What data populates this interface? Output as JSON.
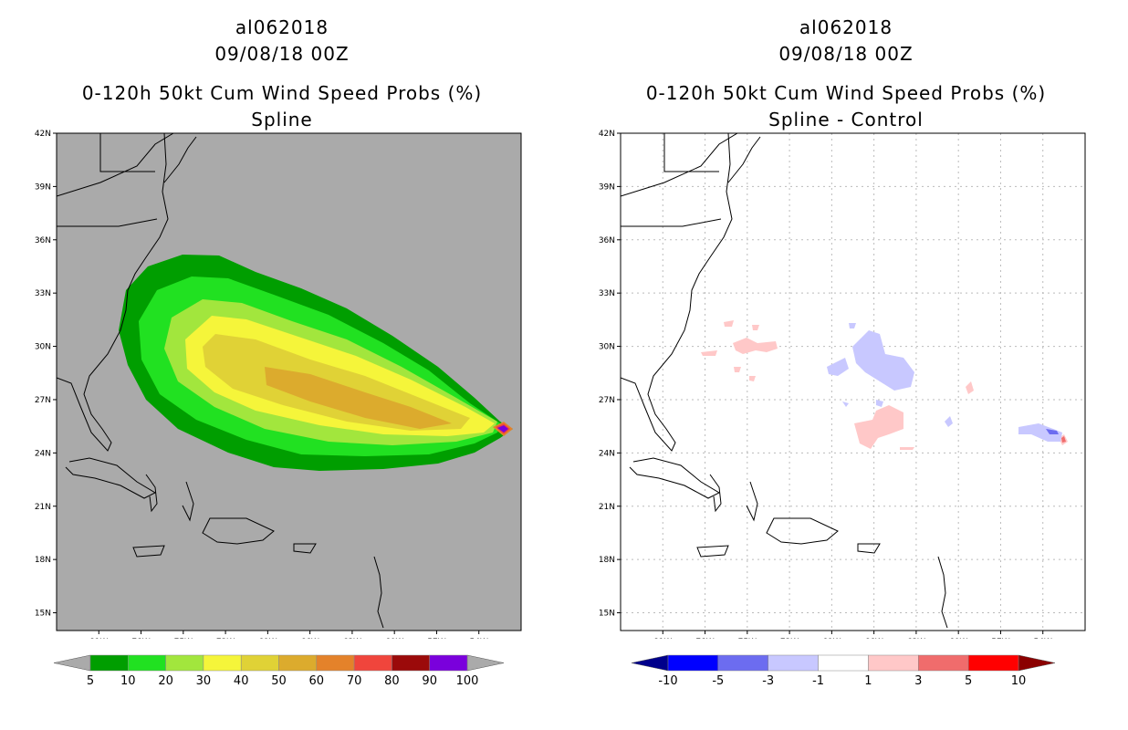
{
  "chart_data": [
    {
      "type": "contour_map",
      "storm_id": "al062018",
      "datetime": "09/08/18 00Z",
      "title": "0-120h 50kt Cum Wind Speed Probs (%)",
      "subtitle": "Spline",
      "units": "%",
      "lat_ticks": [
        "42N",
        "39N",
        "36N",
        "33N",
        "30N",
        "27N",
        "24N",
        "21N",
        "18N",
        "15N"
      ],
      "lon_ticks": [
        "81W",
        "78W",
        "75W",
        "72W",
        "69W",
        "66W",
        "63W",
        "60W",
        "57W",
        "54W"
      ],
      "lat_range": [
        14,
        42
      ],
      "lon_range": [
        -84,
        -51
      ],
      "colorbar_labels": [
        "5",
        "10",
        "20",
        "30",
        "40",
        "50",
        "60",
        "70",
        "80",
        "90",
        "100"
      ],
      "colorbar_colors": [
        "#009e00",
        "#21e121",
        "#a2e63d",
        "#f5f53a",
        "#e0d236",
        "#dcab2d",
        "#e4822a",
        "#f0453c",
        "#9b0a0a",
        "#7a00dc"
      ],
      "background_color": "#aaaaaa"
    },
    {
      "type": "contour_map",
      "storm_id": "al062018",
      "datetime": "09/08/18 00Z",
      "title": "0-120h 50kt Cum Wind Speed Probs (%)",
      "subtitle": "Spline - Control",
      "units": "%",
      "lat_ticks": [
        "42N",
        "39N",
        "36N",
        "33N",
        "30N",
        "27N",
        "24N",
        "21N",
        "18N",
        "15N"
      ],
      "lon_ticks": [
        "81W",
        "78W",
        "75W",
        "72W",
        "69W",
        "66W",
        "63W",
        "60W",
        "57W",
        "54W"
      ],
      "lat_range": [
        14,
        42
      ],
      "lon_range": [
        -84,
        -51
      ],
      "colorbar_labels": [
        "-10",
        "-5",
        "-3",
        "-1",
        "1",
        "3",
        "5",
        "10"
      ],
      "colorbar_colors": [
        "#0000ff",
        "#6c6cf0",
        "#c8c8ff",
        "#ffffff",
        "#ffc8c8",
        "#f06c6c",
        "#ff0000"
      ],
      "colorbar_end_colors": [
        "#00008b",
        "#8b0000"
      ]
    }
  ]
}
